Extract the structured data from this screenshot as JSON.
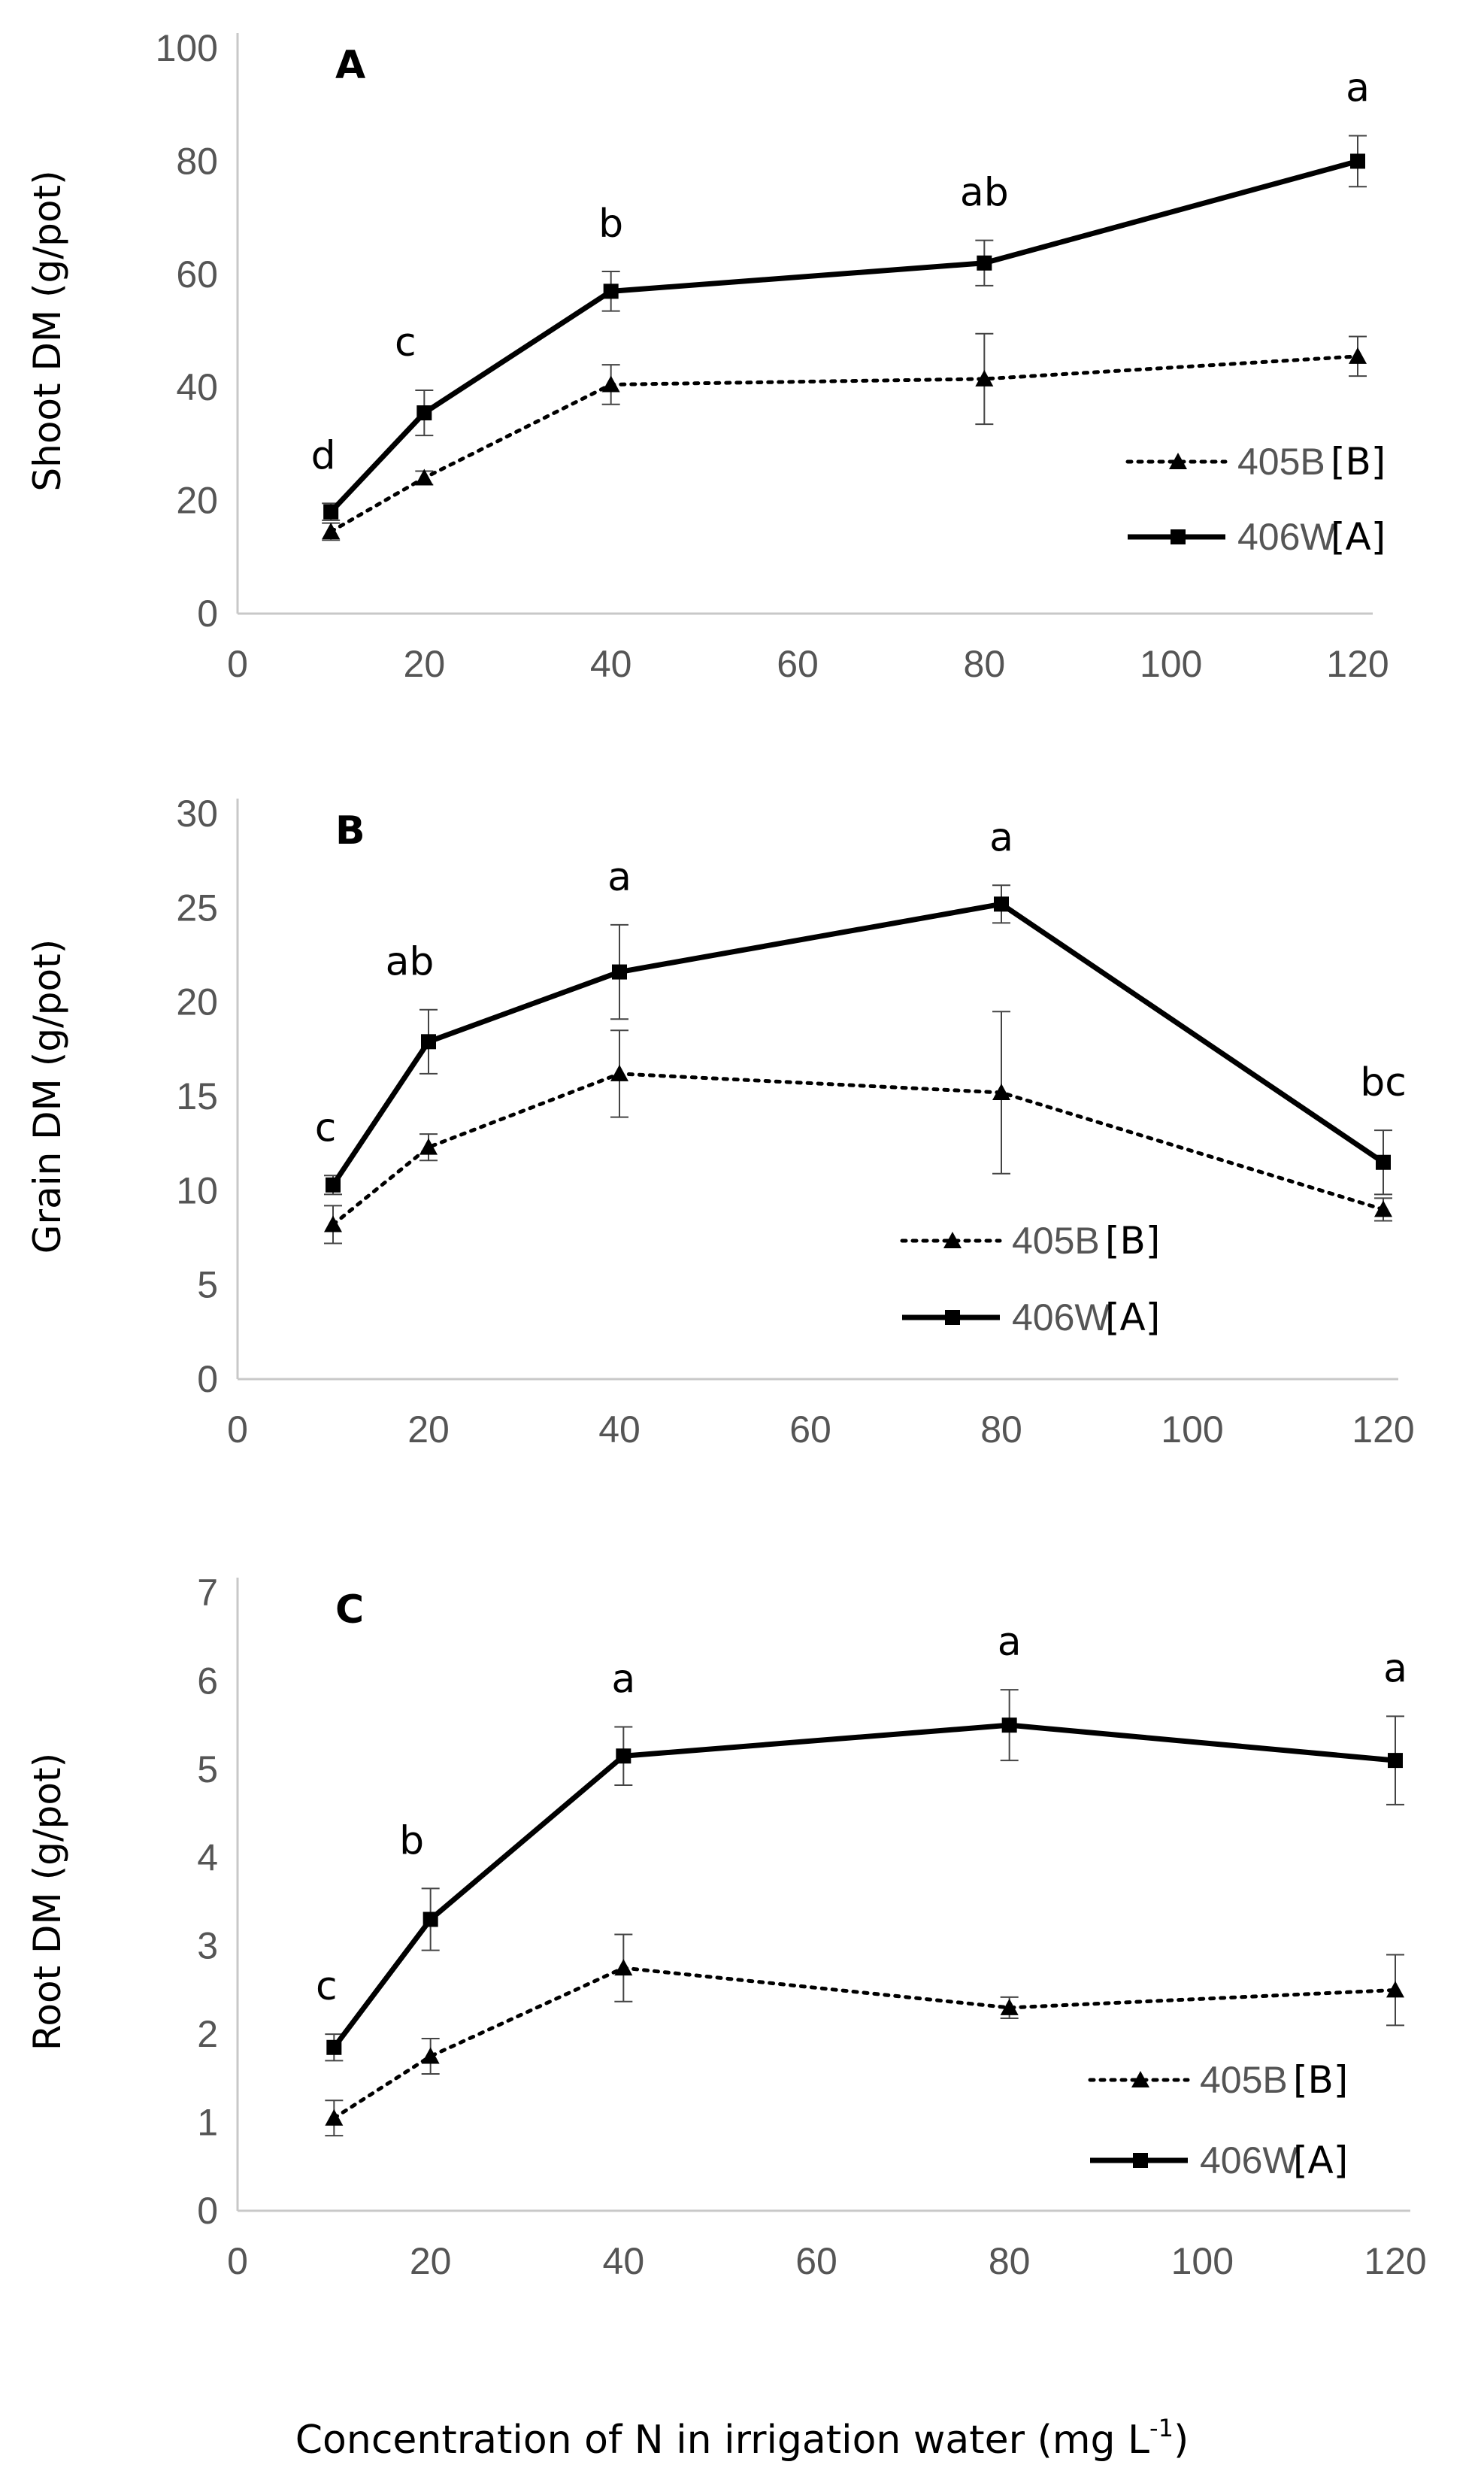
{
  "chart_data": [
    {
      "type": "line",
      "panel_label": "A",
      "ylabel": "Shoot DM (g/pot)",
      "xlabel": "",
      "xlim": [
        0,
        120
      ],
      "ylim": [
        0,
        100
      ],
      "xticks": [
        "0",
        "20",
        "40",
        "60",
        "80",
        "100",
        "120"
      ],
      "yticks": [
        "0",
        "20",
        "40",
        "60",
        "80",
        "100"
      ],
      "x": [
        10,
        20,
        40,
        80,
        120
      ],
      "legend": {
        "placement": "right"
      },
      "series": [
        {
          "name": "405B",
          "group": "[B]",
          "style": "dotted",
          "marker": "triangle",
          "values": [
            14.5,
            24,
            40.5,
            41.5,
            45.5
          ],
          "errors": [
            1.5,
            1.2,
            3.5,
            8,
            3.5
          ]
        },
        {
          "name": "406W",
          "group": "[A]",
          "style": "solid",
          "marker": "square",
          "values": [
            18,
            35.5,
            57,
            62,
            80
          ],
          "errors": [
            1.5,
            4,
            3.5,
            4,
            4.5
          ]
        }
      ],
      "annotations": [
        "d",
        "c",
        "b",
        "ab",
        "a"
      ]
    },
    {
      "type": "line",
      "panel_label": "B",
      "ylabel": "Grain DM (g/pot)",
      "xlabel": "",
      "xlim": [
        0,
        120
      ],
      "ylim": [
        0,
        30
      ],
      "xticks": [
        "0",
        "20",
        "40",
        "60",
        "80",
        "100",
        "120"
      ],
      "yticks": [
        "0",
        "5",
        "10",
        "15",
        "20",
        "25",
        "30"
      ],
      "x": [
        10,
        20,
        40,
        80,
        120
      ],
      "legend": {
        "placement": "lower-right"
      },
      "series": [
        {
          "name": "405B",
          "group": "[B]",
          "style": "dotted",
          "marker": "triangle",
          "values": [
            8.2,
            12.3,
            16.2,
            15.2,
            9
          ],
          "errors": [
            1,
            0.7,
            2.3,
            4.3,
            0.6
          ]
        },
        {
          "name": "406W",
          "group": "[A]",
          "style": "solid",
          "marker": "square",
          "values": [
            10.3,
            17.9,
            21.6,
            25.2,
            11.5
          ],
          "errors": [
            0.5,
            1.7,
            2.5,
            1,
            1.7
          ]
        }
      ],
      "annotations": [
        "c",
        "ab",
        "a",
        "a",
        "bc"
      ]
    },
    {
      "type": "line",
      "panel_label": "C",
      "ylabel": "Root DM (g/pot)",
      "xlabel": "Concentration of N in irrigation water (mg L-1)",
      "xlim": [
        0,
        120
      ],
      "ylim": [
        0,
        7
      ],
      "xticks": [
        "0",
        "20",
        "40",
        "60",
        "80",
        "100",
        "120"
      ],
      "yticks": [
        "0",
        "1",
        "2",
        "3",
        "4",
        "5",
        "6",
        "7"
      ],
      "x": [
        10,
        20,
        40,
        80,
        120
      ],
      "legend": {
        "placement": "lower-right"
      },
      "series": [
        {
          "name": "405B",
          "group": "[B]",
          "style": "dotted",
          "marker": "triangle",
          "values": [
            1.05,
            1.75,
            2.75,
            2.3,
            2.5
          ],
          "errors": [
            0.2,
            0.2,
            0.38,
            0.12,
            0.4
          ]
        },
        {
          "name": "406W",
          "group": "[A]",
          "style": "solid",
          "marker": "square",
          "values": [
            1.85,
            3.3,
            5.15,
            5.5,
            5.1
          ],
          "errors": [
            0.15,
            0.35,
            0.33,
            0.4,
            0.5
          ]
        }
      ],
      "annotations": [
        "c",
        "b",
        "a",
        "a",
        "a"
      ]
    }
  ],
  "xlabel_main": "Concentration of N in irrigation water (mg L",
  "xlabel_sup": "-1",
  "xlabel_close": ")"
}
